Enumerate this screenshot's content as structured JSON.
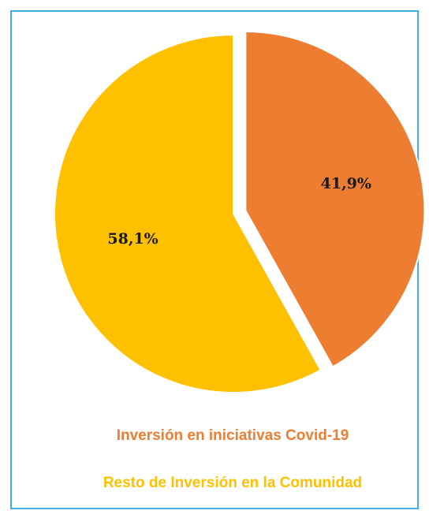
{
  "chart_data": {
    "type": "pie",
    "categories": [
      "Inversión en iniciativas Covid-19",
      "Resto de Inversión en la Comunidad"
    ],
    "values": [
      41.9,
      58.1
    ],
    "value_labels": [
      "41,9%",
      "58,1%"
    ],
    "colors": [
      "#ED7D31",
      "#FFC000"
    ],
    "explode": [
      0.07,
      0
    ]
  }
}
